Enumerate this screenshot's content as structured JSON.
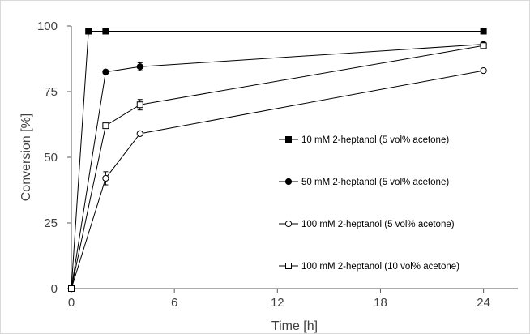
{
  "chart_data": {
    "type": "line",
    "xlabel": "Time [h]",
    "ylabel": "Conversion [%]",
    "xlim": [
      0,
      26
    ],
    "ylim": [
      0,
      100
    ],
    "xticks": [
      0,
      6,
      12,
      18,
      24
    ],
    "yticks": [
      0,
      25,
      50,
      75,
      100
    ],
    "grid": false,
    "legend_position": "right",
    "series": [
      {
        "name": "10 mM 2-heptanol (5 vol% acetone)",
        "marker": "filled-square",
        "x": [
          0,
          1,
          2,
          24
        ],
        "y": [
          0,
          98,
          98,
          98
        ],
        "err": [
          0,
          0,
          0,
          0
        ]
      },
      {
        "name": "50 mM 2-heptanol (5 vol% acetone)",
        "marker": "filled-circle",
        "x": [
          0,
          2,
          4,
          24
        ],
        "y": [
          0,
          82.5,
          84.5,
          93
        ],
        "err": [
          0,
          0,
          1.5,
          0
        ]
      },
      {
        "name": "100 mM 2-heptanol (5 vol% acetone)",
        "marker": "open-circle",
        "x": [
          0,
          2,
          4,
          24
        ],
        "y": [
          0,
          42,
          59,
          83
        ],
        "err": [
          0,
          2.5,
          0,
          0
        ]
      },
      {
        "name": "100 mM 2-heptanol (10 vol% acetone)",
        "marker": "open-square",
        "x": [
          0,
          2,
          4,
          24
        ],
        "y": [
          0,
          62,
          70,
          92.5
        ],
        "err": [
          0,
          0,
          2,
          0
        ]
      }
    ]
  }
}
